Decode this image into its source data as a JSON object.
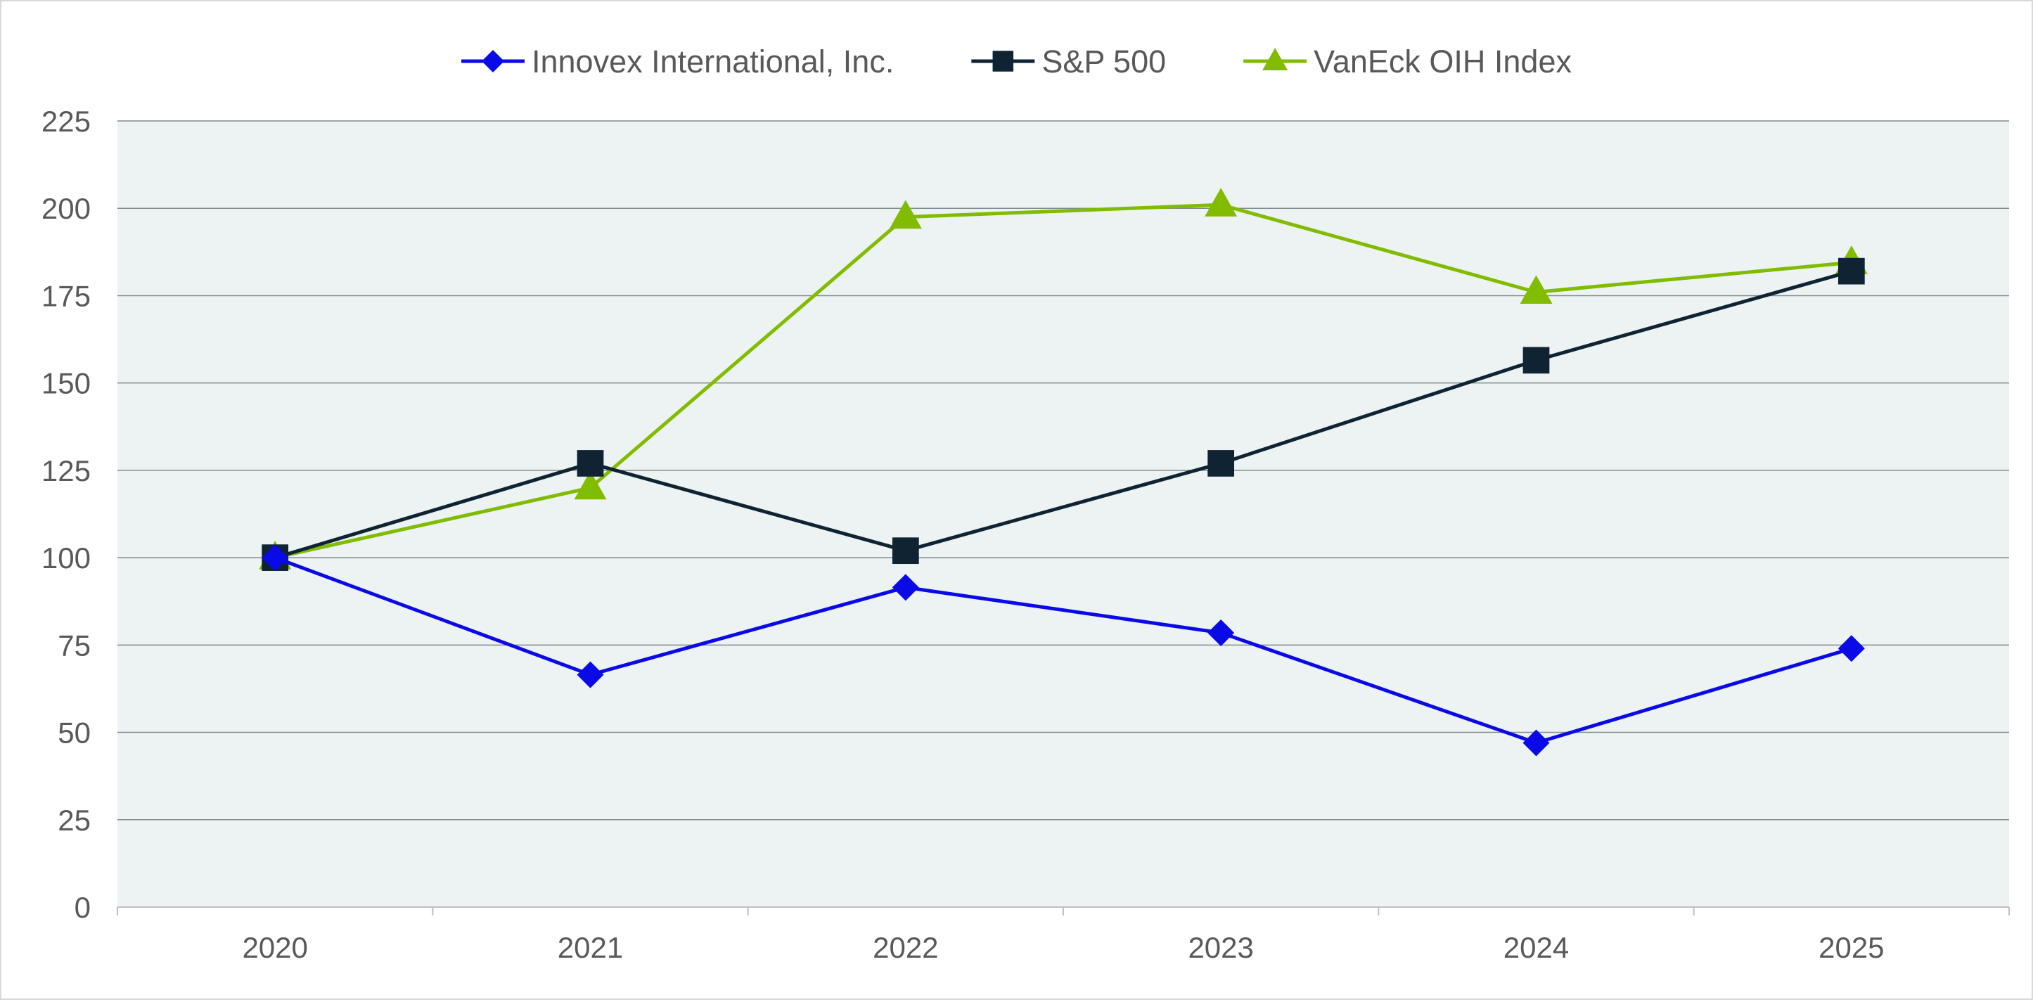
{
  "chart_data": {
    "type": "line",
    "title": "",
    "xlabel": "",
    "ylabel": "",
    "categories": [
      "2020",
      "2021",
      "2022",
      "2023",
      "2024",
      "2025"
    ],
    "ylim": [
      0,
      225
    ],
    "yticks": [
      0,
      25,
      50,
      75,
      100,
      125,
      150,
      175,
      200,
      225
    ],
    "grid": true,
    "legend_position": "top-center",
    "background_color": "#edf3f3",
    "gridline_color": "#7f8c8d",
    "series": [
      {
        "name": "Innovex International, Inc.",
        "color": "#0a0ae6",
        "marker": "diamond",
        "values": [
          100,
          66.5,
          91.5,
          78.5,
          47,
          74
        ]
      },
      {
        "name": "S&P 500",
        "color": "#0f2332",
        "marker": "square",
        "values": [
          100,
          127,
          102,
          127,
          156.5,
          182
        ]
      },
      {
        "name": "VanEck OIH Index",
        "color": "#82bc00",
        "marker": "triangle",
        "values": [
          100,
          120,
          197.5,
          201,
          176,
          184.5
        ]
      }
    ]
  }
}
